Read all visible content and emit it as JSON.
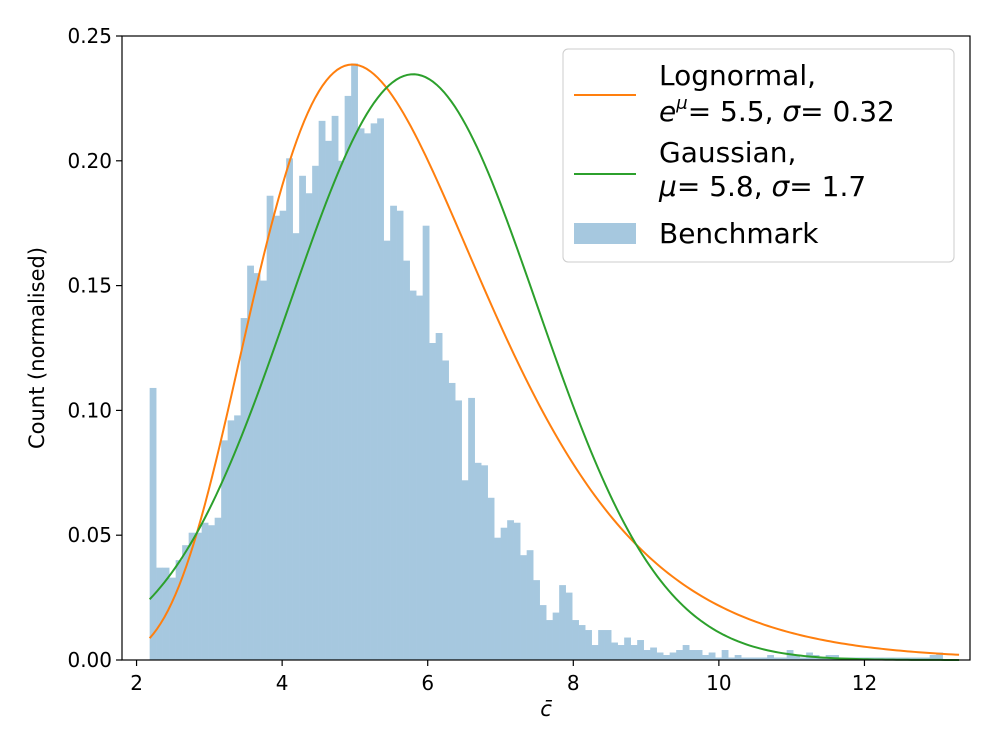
{
  "chart_data": {
    "type": "histogram",
    "xlabel": "c̄",
    "ylabel": "Count (normalised)",
    "xlim": [
      1.8,
      13.45
    ],
    "ylim": [
      0,
      0.25
    ],
    "xticks": [
      "2",
      "4",
      "6",
      "8",
      "10",
      "12"
    ],
    "xtick_values": [
      2,
      4,
      6,
      8,
      10,
      12
    ],
    "yticks": [
      "0.00",
      "0.05",
      "0.10",
      "0.15",
      "0.20",
      "0.25"
    ],
    "ytick_values": [
      0,
      0.05,
      0.1,
      0.15,
      0.2,
      0.25
    ],
    "grid": false,
    "legend_placement": "top-right",
    "histogram": {
      "name": "Benchmark",
      "color": "#a6c8df",
      "bin_start": 2.18,
      "bin_width": 0.0893,
      "heights": [
        0.109,
        0.037,
        0.037,
        0.033,
        0.04,
        0.046,
        0.051,
        0.051,
        0.055,
        0.054,
        0.057,
        0.088,
        0.096,
        0.098,
        0.137,
        0.158,
        0.155,
        0.152,
        0.186,
        0.178,
        0.18,
        0.201,
        0.171,
        0.194,
        0.187,
        0.198,
        0.216,
        0.208,
        0.218,
        0.2,
        0.226,
        0.239,
        0.213,
        0.211,
        0.215,
        0.217,
        0.168,
        0.182,
        0.18,
        0.16,
        0.148,
        0.146,
        0.174,
        0.127,
        0.131,
        0.12,
        0.111,
        0.104,
        0.072,
        0.105,
        0.079,
        0.078,
        0.065,
        0.049,
        0.053,
        0.056,
        0.055,
        0.042,
        0.044,
        0.032,
        0.022,
        0.016,
        0.019,
        0.03,
        0.027,
        0.016,
        0.014,
        0.012,
        0.006,
        0.012,
        0.012,
        0.007,
        0.006,
        0.009,
        0.006,
        0.008,
        0.004,
        0.005,
        0.003,
        0.002,
        0.003,
        0.004,
        0.006,
        0.004,
        0.004,
        0.002,
        0.003,
        0.001,
        0.004,
        0.001,
        0.002,
        0.001,
        0.001,
        0.001,
        0.001,
        0.002,
        0.001,
        0.001,
        0.004,
        0.002,
        0.001,
        0.003,
        0.002,
        0.001,
        0.002,
        0.002,
        0.001,
        0.001,
        0.001,
        0.001,
        0.001,
        0.001,
        0.001,
        0.001,
        0.001,
        0.001,
        0.001,
        0.001,
        0.001,
        0.001,
        0.002,
        0.003
      ]
    },
    "curves": [
      {
        "name": "Lognormal,",
        "color": "#ff7f0e",
        "kind": "lognormal",
        "median": 5.5,
        "sigma": 0.32,
        "x_range": [
          2.18,
          13.3
        ]
      },
      {
        "name": "Gaussian,",
        "color": "#2ca02c",
        "kind": "gaussian",
        "mu": 5.8,
        "sigma": 1.7,
        "x_range": [
          2.18,
          13.3
        ]
      }
    ],
    "legend": {
      "lognormal_title": "Lognormal,",
      "lognormal_params_prefix": "e",
      "lognormal_params_sup": "μ",
      "lognormal_params_mid": "=   5.5, ",
      "lognormal_params_sigma": "σ",
      "lognormal_params_end": "=  0.32",
      "gaussian_title": "Gaussian,",
      "gaussian_params_mu": "μ",
      "gaussian_params_mid": "=   5.8, ",
      "gaussian_params_sigma": "σ",
      "gaussian_params_end": "=   1.7",
      "histogram_label": "Benchmark"
    }
  }
}
